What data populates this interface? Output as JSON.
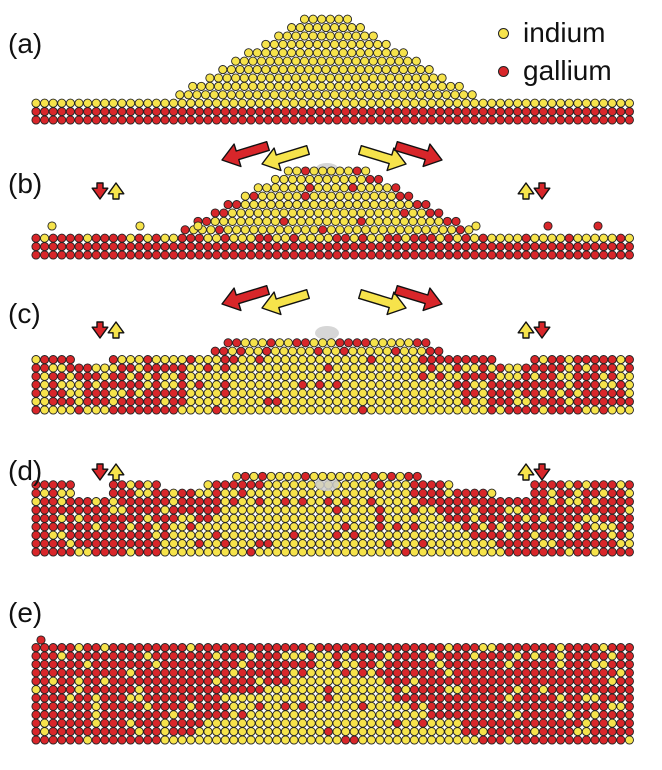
{
  "legend": {
    "indium": {
      "label": "indium",
      "color": "#f6e34b"
    },
    "gallium": {
      "label": "gallium",
      "color": "#d8262a"
    }
  },
  "colors": {
    "outline": "#222222",
    "shadow": "#cfcfcf",
    "arrow_outline": "#111111"
  },
  "panels": [
    {
      "label": "(a)",
      "stage": "as-deposited indium island on gallium substrate",
      "exchange_arrows": false,
      "diffusion_arrows": false
    },
    {
      "label": "(b)",
      "stage": "early intermixing",
      "exchange_arrows": true,
      "diffusion_arrows": true
    },
    {
      "label": "(c)",
      "stage": "continued intermixing",
      "exchange_arrows": true,
      "diffusion_arrows": true
    },
    {
      "label": "(d)",
      "stage": "advanced intermixing",
      "exchange_arrows": true,
      "diffusion_arrows": false
    },
    {
      "label": "(e)",
      "stage": "final buried indium-rich region",
      "exchange_arrows": false,
      "diffusion_arrows": false
    }
  ]
}
